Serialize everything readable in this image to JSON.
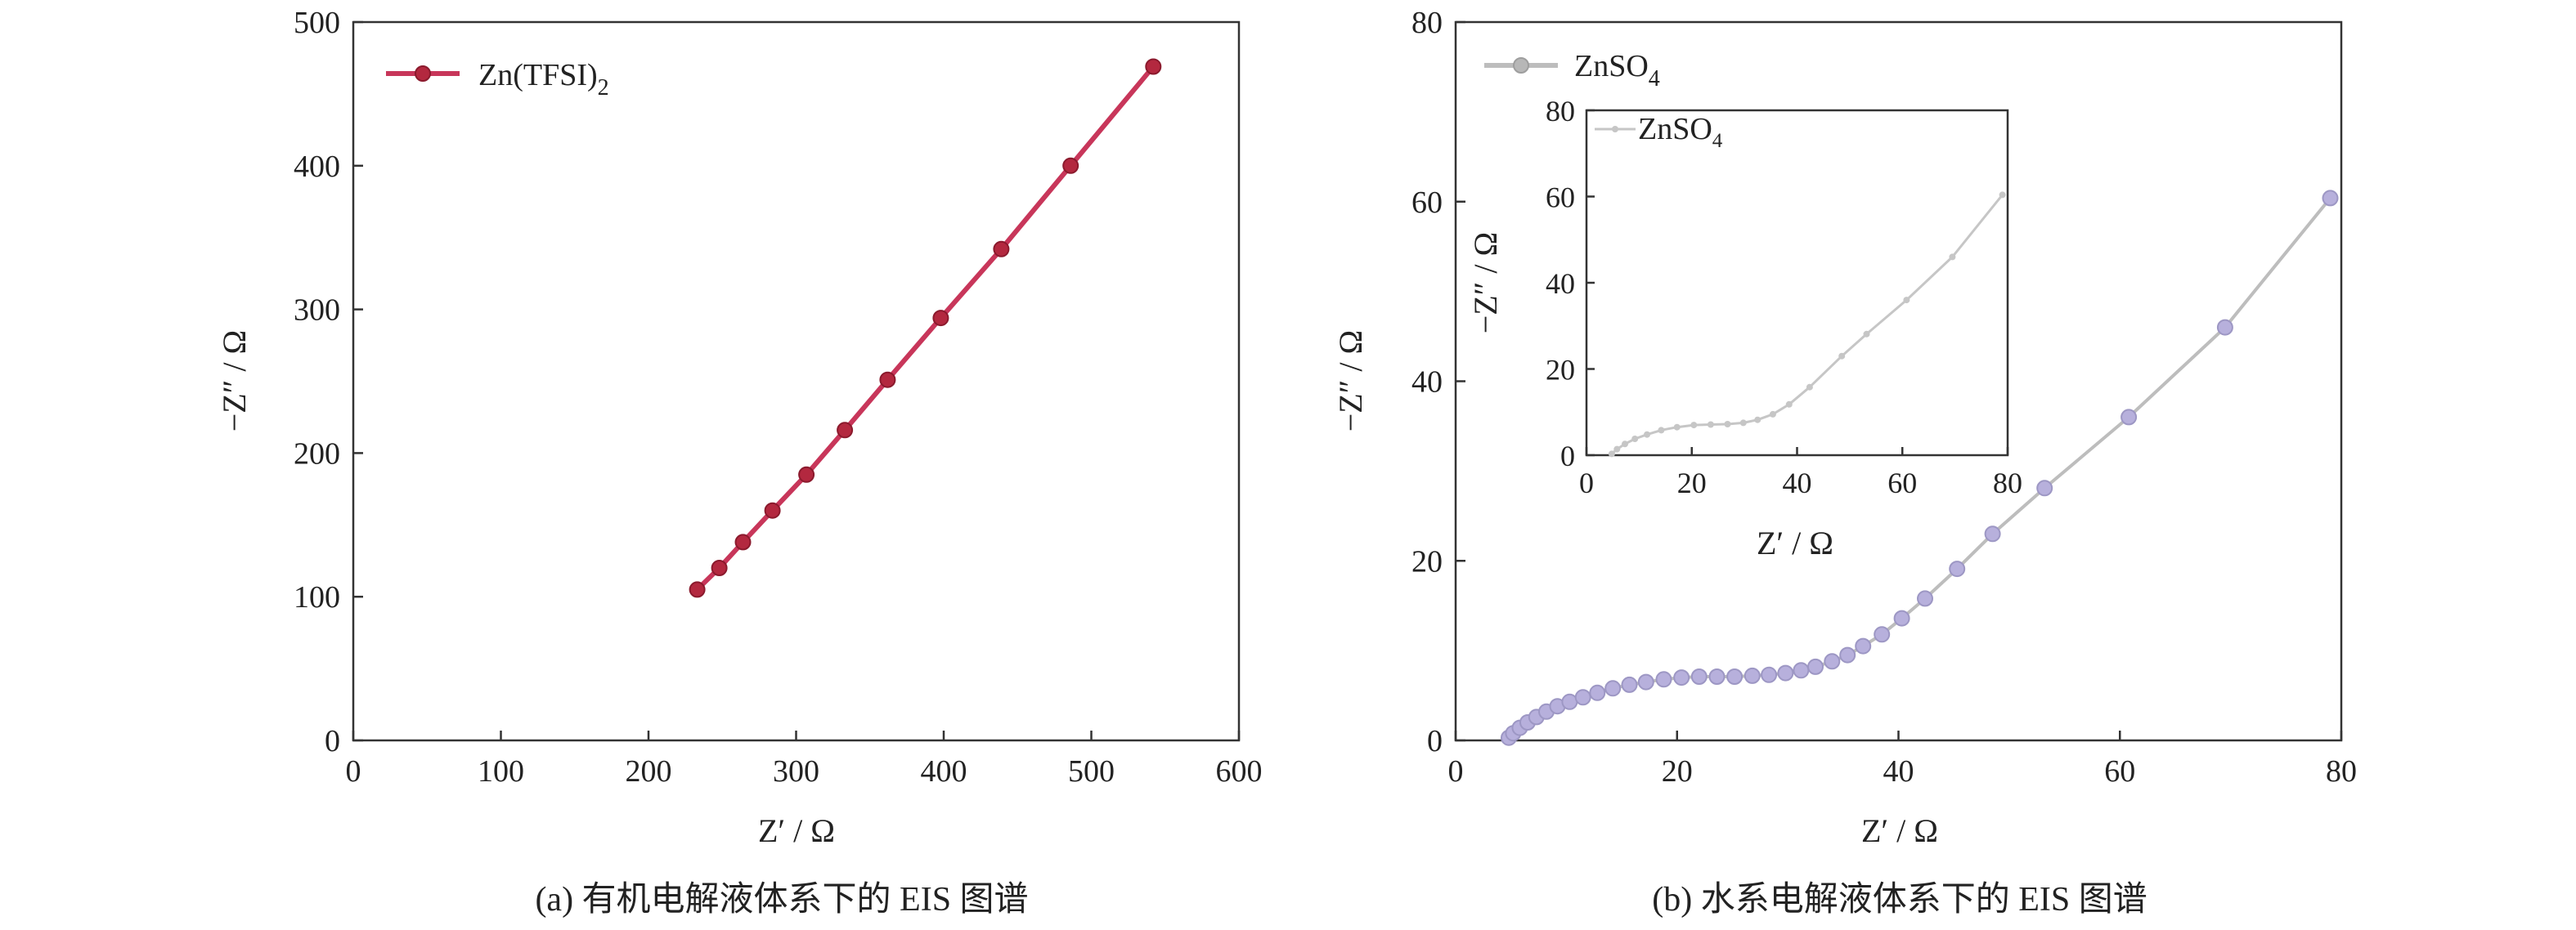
{
  "chart_data": [
    {
      "type": "line",
      "caption": "(a) 有机电解液体系下的 EIS 图谱",
      "xlabel": "Z′ / Ω",
      "ylabel": "−Z″ / Ω",
      "xlim": [
        0,
        600
      ],
      "ylim": [
        0,
        500
      ],
      "xticks": [
        "0",
        "100",
        "200",
        "300",
        "400",
        "500",
        "600"
      ],
      "yticks": [
        "0",
        "100",
        "200",
        "300",
        "400",
        "500"
      ],
      "legend": {
        "position": "top-left",
        "label": "Zn(TFSI)",
        "subscript": "2"
      },
      "colors": {
        "line": "#c8365a",
        "marker": "#b3283f",
        "marker_edge": "#8b1a2d"
      },
      "series": [
        {
          "name": "Zn(TFSI)2",
          "x": [
            233,
            248,
            264,
            284,
            307,
            333,
            362,
            398,
            439,
            486,
            542
          ],
          "y": [
            105,
            120,
            138,
            160,
            185,
            216,
            251,
            294,
            342,
            400,
            469
          ]
        }
      ]
    },
    {
      "type": "line",
      "caption": "(b) 水系电解液体系下的 EIS 图谱",
      "xlabel": "Z′ / Ω",
      "ylabel": "−Z″ / Ω",
      "xlim": [
        0,
        80
      ],
      "ylim": [
        0,
        80
      ],
      "xticks": [
        "0",
        "20",
        "40",
        "60",
        "80"
      ],
      "yticks": [
        "0",
        "20",
        "40",
        "60",
        "80"
      ],
      "legend": {
        "position": "top-left",
        "label": "ZnSO",
        "subscript": "4"
      },
      "colors": {
        "line": "#bdbdbd",
        "marker": "#b7b0dc",
        "marker_edge": "#9d97c4"
      },
      "series": [
        {
          "name": "ZnSO4",
          "x": [
            4.8,
            5.2,
            5.8,
            6.5,
            7.3,
            8.2,
            9.2,
            10.3,
            11.5,
            12.8,
            14.2,
            15.7,
            17.2,
            18.8,
            20.4,
            22.0,
            23.6,
            25.2,
            26.8,
            28.3,
            29.8,
            31.2,
            32.5,
            34.0,
            35.4,
            36.8,
            38.5,
            40.3,
            42.4,
            45.3,
            48.5,
            53.2,
            60.8,
            69.5,
            79.0
          ],
          "y": [
            0.3,
            0.8,
            1.4,
            2.0,
            2.6,
            3.2,
            3.8,
            4.3,
            4.8,
            5.3,
            5.8,
            6.2,
            6.5,
            6.8,
            7.0,
            7.1,
            7.1,
            7.1,
            7.2,
            7.3,
            7.5,
            7.8,
            8.2,
            8.8,
            9.5,
            10.5,
            11.8,
            13.6,
            15.8,
            19.1,
            23.0,
            28.1,
            36.0,
            46.0,
            60.4
          ]
        }
      ],
      "inset": {
        "xlabel": "Z′ / Ω",
        "ylabel": "−Z″ / Ω",
        "xlim": [
          0,
          80
        ],
        "ylim": [
          0,
          80
        ],
        "xticks": [
          "0",
          "20",
          "40",
          "60",
          "80"
        ],
        "yticks": [
          "0",
          "20",
          "40",
          "60",
          "80"
        ],
        "legend": {
          "position": "top-left",
          "label": "ZnSO",
          "subscript": "4"
        },
        "colors": {
          "line": "#c6c6c6",
          "marker": "#c6c6c6"
        },
        "series": [
          {
            "name": "ZnSO4",
            "x": [
              4.8,
              5.8,
              7.3,
              9.2,
              11.5,
              14.2,
              17.2,
              20.4,
              23.6,
              26.8,
              29.8,
              32.5,
              35.4,
              38.5,
              42.4,
              48.5,
              53.2,
              60.8,
              69.5,
              79.0
            ],
            "y": [
              0.3,
              1.4,
              2.6,
              3.8,
              4.8,
              5.8,
              6.5,
              7.0,
              7.1,
              7.2,
              7.5,
              8.2,
              9.5,
              11.8,
              15.8,
              23.0,
              28.1,
              36.0,
              46.0,
              60.4
            ]
          }
        ]
      }
    }
  ]
}
